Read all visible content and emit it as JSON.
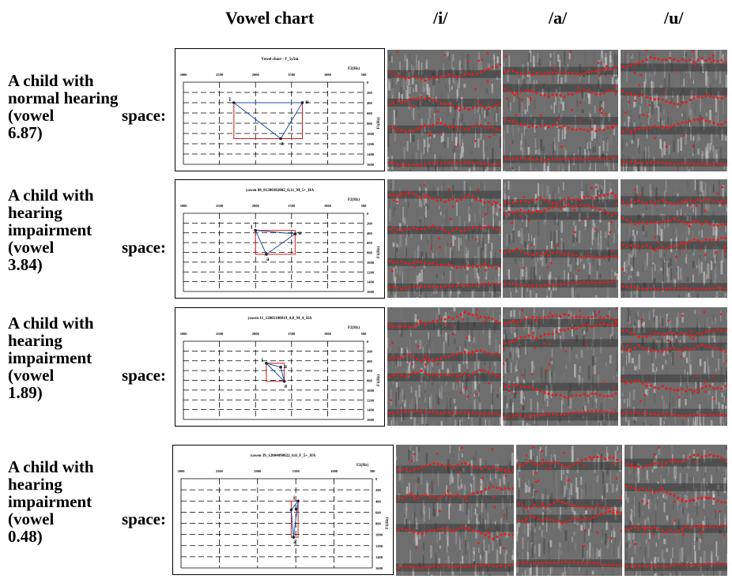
{
  "headers": {
    "vowel_chart": "Vowel chart",
    "i": "/i/",
    "a": "/a/",
    "u": "/u/"
  },
  "axis": {
    "f2_label": "F2(Hz)",
    "f1_label": "F1(Hz)",
    "f2_ticks": [
      "3000",
      "2500",
      "2000",
      "1500",
      "1000",
      "500"
    ],
    "f1_ticks": [
      "0",
      "200",
      "400",
      "600",
      "800",
      "1000",
      "1200",
      "1400",
      "1600"
    ]
  },
  "rows": [
    {
      "label_lines": [
        "A child with",
        "normal hearing"
      ],
      "label_vs_word": "(vowel",
      "label_vs_word2": "space:",
      "label_vs_value": "6.87)",
      "chart_title": "Vowel chart - F_5y5m",
      "points": {
        "i": [
          2300,
          400
        ],
        "a": [
          1650,
          1100
        ],
        "u": [
          1350,
          400
        ]
      }
    },
    {
      "label_lines": [
        "A child with",
        "hearing",
        "impairment"
      ],
      "label_vs_word": "(vowel",
      "label_vs_word2": "space:",
      "label_vs_value": "3.84)",
      "chart_title": "yawen 08_01200302002_6;11_M_5+_HA",
      "points": {
        "i": [
          2000,
          350
        ],
        "a": [
          1850,
          840
        ],
        "u": [
          1450,
          420
        ]
      }
    },
    {
      "label_lines": [
        "A child with",
        "hearing",
        "impairment"
      ],
      "label_vs_word": "(vowel",
      "label_vs_word2": "space:",
      "label_vs_value": "1.89)",
      "chart_title": "yawen 11_12005100019_4;0_M_4_HA",
      "points": {
        "i": [
          1850,
          450
        ],
        "a": [
          1600,
          820
        ],
        "u": [
          1650,
          530
        ]
      }
    },
    {
      "label_lines": [
        "A child with",
        "hearing",
        "impairment"
      ],
      "label_vs_word": "(vowel",
      "label_vs_word2": "space:",
      "label_vs_value": "0.48)",
      "chart_title": "yawen 39_12004090022_6;0_F_5+_HA",
      "points": {
        "i": [
          1470,
          400
        ],
        "a": [
          1530,
          1050
        ],
        "u": [
          1560,
          560
        ]
      }
    }
  ],
  "point_labels": {
    "i": "i",
    "a": "a",
    "u": "u"
  },
  "colors": {
    "triangle": "#1f4fa8",
    "box": "#d11a1a",
    "formant": "#e02020",
    "spectrogram_dark": "#2a2a2a",
    "spectrogram_light": "#cfcfcf"
  }
}
